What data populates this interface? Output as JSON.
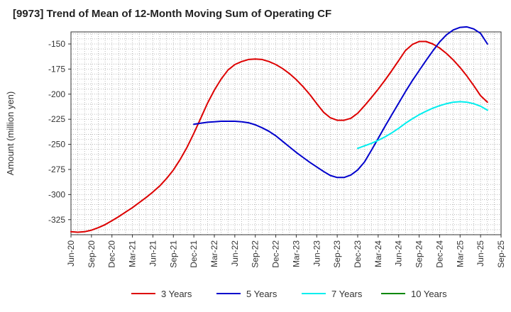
{
  "chart_data": {
    "type": "line",
    "title": "[9973]  Trend of Mean of 12-Month Moving Sum of Operating CF",
    "xlabel": "",
    "ylabel": "Amount (million yen)",
    "x_ticks": [
      "Jun-20",
      "Sep-20",
      "Dec-20",
      "Mar-21",
      "Jun-21",
      "Sep-21",
      "Dec-21",
      "Mar-22",
      "Jun-22",
      "Sep-22",
      "Dec-22",
      "Mar-23",
      "Jun-23",
      "Sep-23",
      "Dec-23",
      "Mar-24",
      "Jun-24",
      "Sep-24",
      "Dec-24",
      "Mar-25",
      "Jun-25",
      "Sep-25"
    ],
    "y_ticks": [
      -150,
      -175,
      -200,
      -225,
      -250,
      -275,
      -300,
      -325
    ],
    "ylim": [
      -340,
      -138
    ],
    "grid": true,
    "legend_position": "bottom",
    "series": [
      {
        "name": "3 Years",
        "color": "#dd0000",
        "start_index": 0,
        "values": [
          -337,
          -337.5,
          -337,
          -335.5,
          -333,
          -330,
          -326,
          -322,
          -317.5,
          -313,
          -308,
          -303,
          -297.5,
          -291.5,
          -284,
          -275.5,
          -265,
          -253,
          -239,
          -224,
          -209,
          -196,
          -185,
          -176,
          -170.5,
          -167.5,
          -165.5,
          -165,
          -165.5,
          -167.5,
          -170.5,
          -174.5,
          -179.5,
          -185.5,
          -192.5,
          -200.5,
          -209.5,
          -218,
          -223.5,
          -226,
          -226,
          -224,
          -219,
          -211.5,
          -203.5,
          -195,
          -186,
          -176.5,
          -166.5,
          -156.5,
          -150.5,
          -147.5,
          -147.5,
          -150,
          -154,
          -159.5,
          -166,
          -173.5,
          -182,
          -191.5,
          -201.5,
          -208
        ]
      },
      {
        "name": "5 Years",
        "color": "#0000cc",
        "start_index": 18,
        "values": [
          -230,
          -229,
          -228,
          -227.5,
          -227,
          -227,
          -227,
          -227.5,
          -228.5,
          -230.5,
          -233.5,
          -237,
          -241.5,
          -247,
          -252.5,
          -258,
          -263,
          -268,
          -272.5,
          -277,
          -281,
          -283,
          -283,
          -280.5,
          -275.5,
          -267.5,
          -256,
          -244,
          -232,
          -220.5,
          -209,
          -197.5,
          -186.5,
          -176.5,
          -166.5,
          -157,
          -148,
          -141,
          -136,
          -133.5,
          -133,
          -135,
          -139.5,
          -150
        ]
      },
      {
        "name": "7 Years",
        "color": "#00eeee",
        "start_index": 42,
        "values": [
          -254,
          -251.5,
          -249,
          -246,
          -242.5,
          -238.5,
          -234,
          -229,
          -224.5,
          -220.5,
          -217,
          -214,
          -211.5,
          -209.5,
          -208,
          -207.5,
          -208,
          -209.5,
          -212,
          -216
        ]
      },
      {
        "name": "10 Years",
        "color": "#008800",
        "start_index": 0,
        "values": []
      }
    ]
  }
}
